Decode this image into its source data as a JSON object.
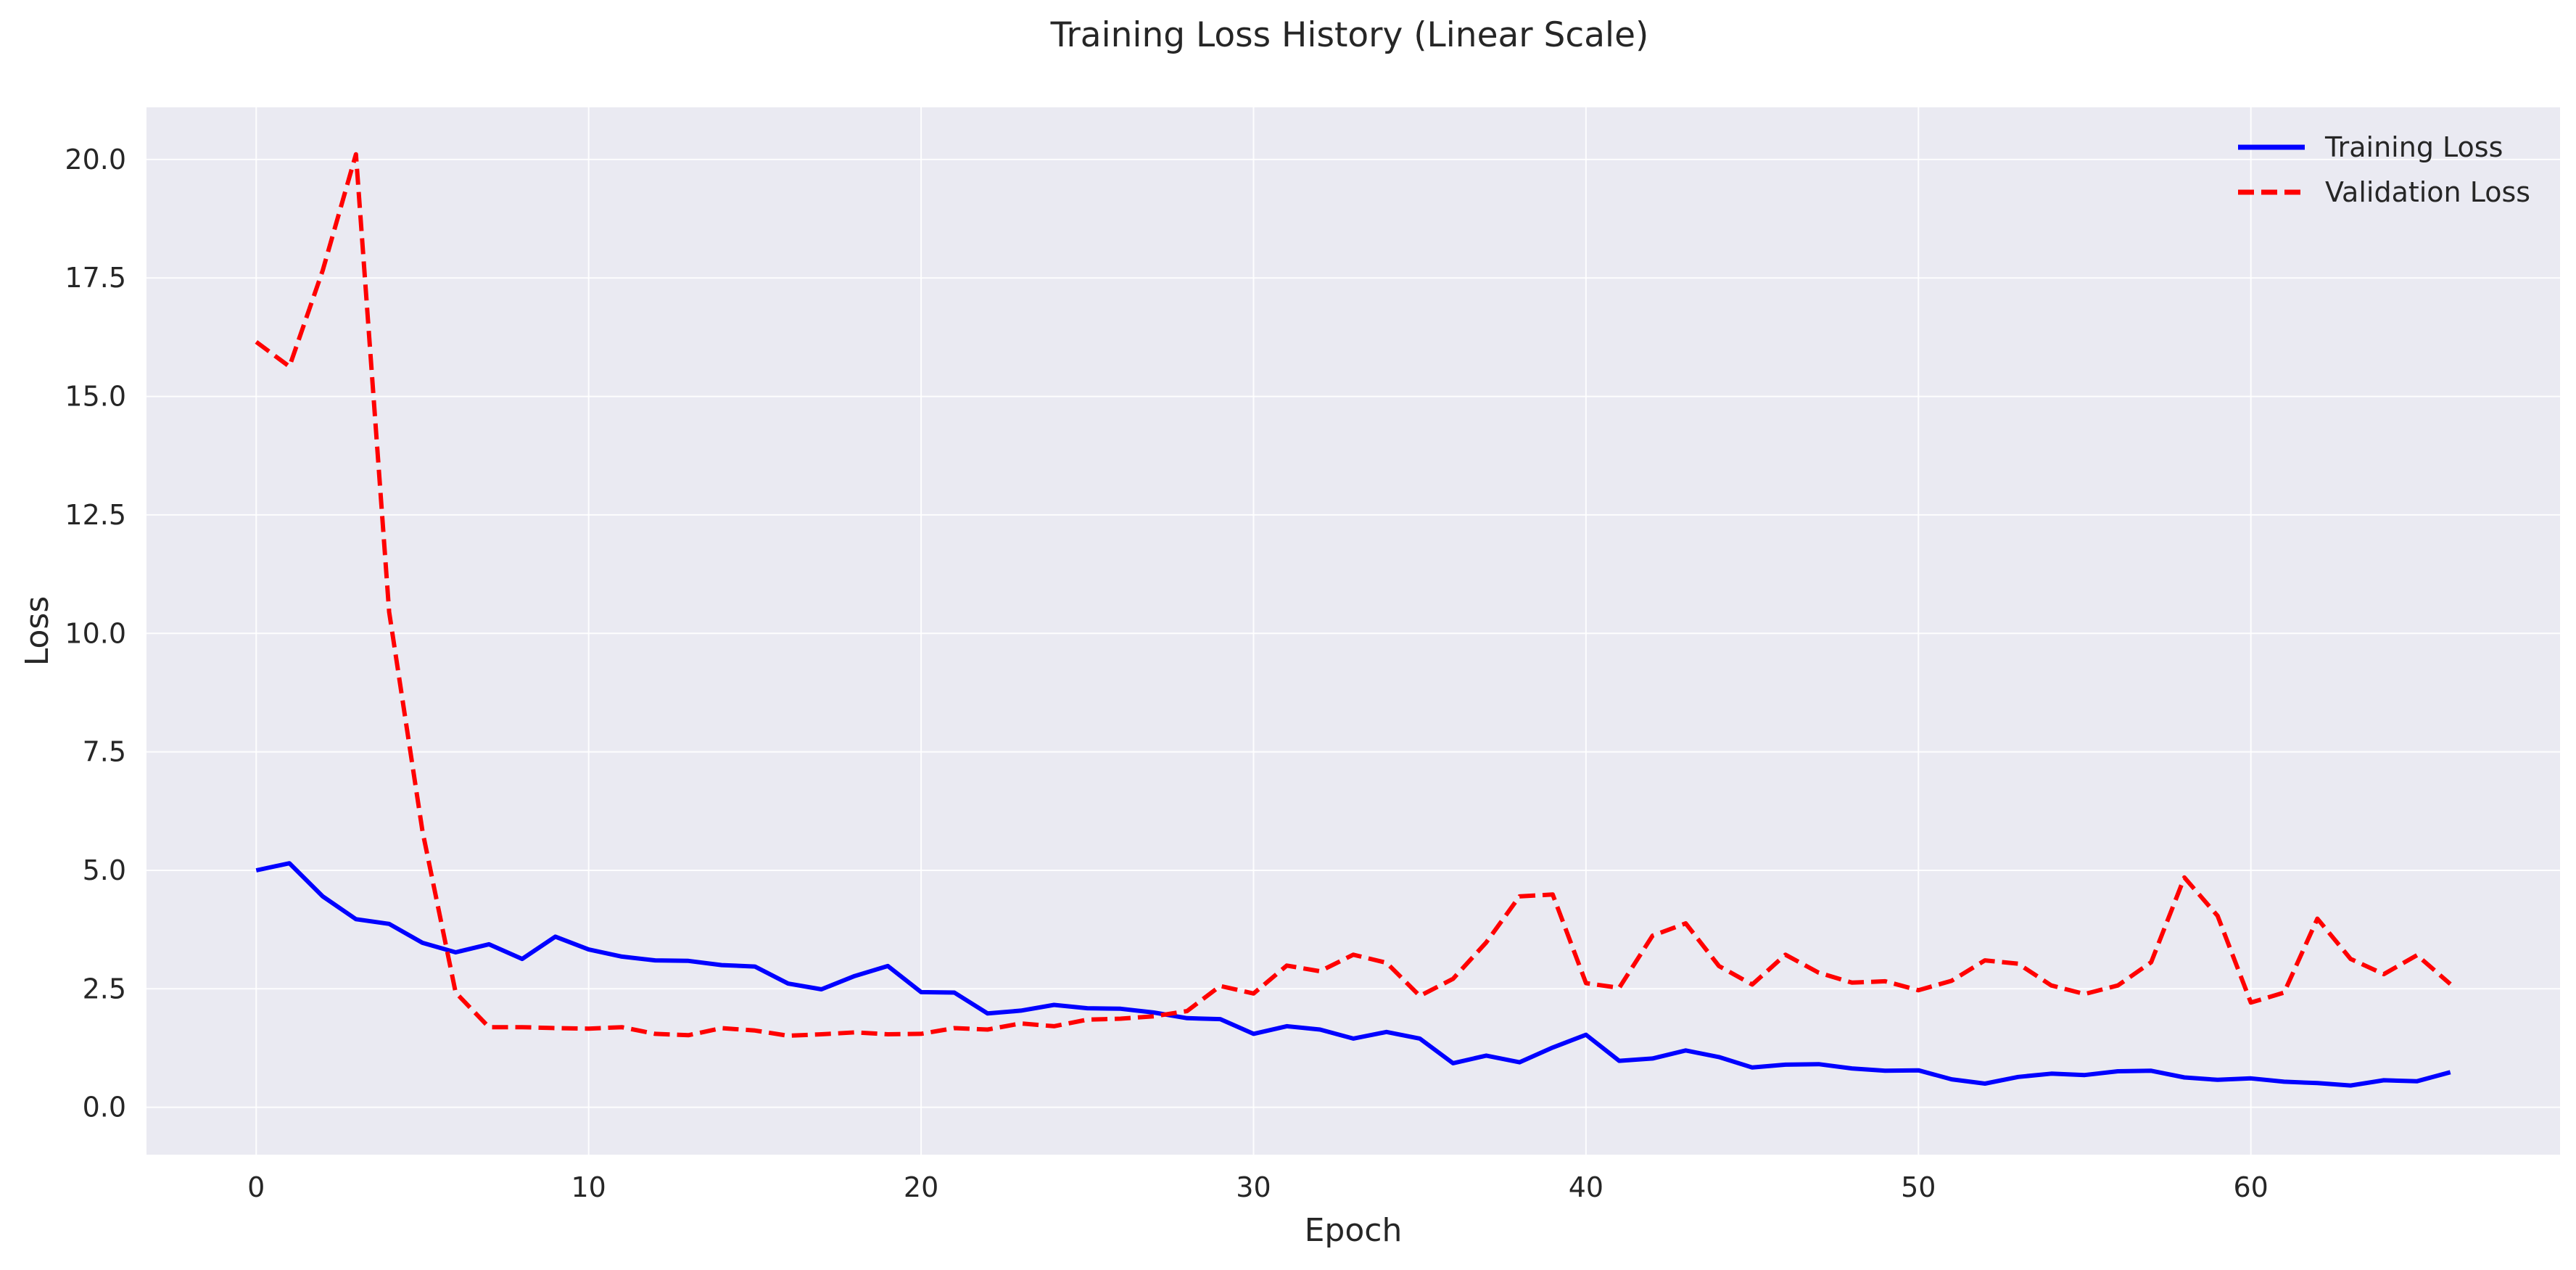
{
  "chart_data": {
    "type": "line",
    "title": "Training Loss History (Linear Scale)",
    "xlabel": "Epoch",
    "ylabel": "Loss",
    "xlim": [
      -3.3,
      69.3
    ],
    "ylim": [
      -1.0,
      21.1
    ],
    "xticks": [
      0,
      10,
      20,
      30,
      40,
      50,
      60
    ],
    "yticks": [
      0.0,
      2.5,
      5.0,
      7.5,
      10.0,
      12.5,
      15.0,
      17.5,
      20.0
    ],
    "xtick_labels": [
      "0",
      "10",
      "20",
      "30",
      "40",
      "50",
      "60"
    ],
    "ytick_labels": [
      "0.0",
      "2.5",
      "5.0",
      "7.5",
      "10.0",
      "12.5",
      "15.0",
      "17.5",
      "20.0"
    ],
    "grid": true,
    "legend_position": "top-right",
    "series": [
      {
        "name": "Training Loss",
        "color": "#0000ff",
        "style": "solid",
        "values": [
          5.0,
          5.15,
          4.45,
          3.97,
          3.87,
          3.47,
          3.27,
          3.44,
          3.13,
          3.6,
          3.33,
          3.18,
          3.1,
          3.09,
          3.0,
          2.97,
          2.61,
          2.49,
          2.77,
          2.98,
          2.43,
          2.42,
          1.98,
          2.04,
          2.16,
          2.09,
          2.08,
          2.0,
          1.88,
          1.86,
          1.55,
          1.71,
          1.64,
          1.45,
          1.59,
          1.45,
          0.93,
          1.09,
          0.95,
          1.26,
          1.53,
          0.98,
          1.03,
          1.2,
          1.06,
          0.84,
          0.9,
          0.91,
          0.82,
          0.77,
          0.78,
          0.59,
          0.5,
          0.64,
          0.71,
          0.68,
          0.76,
          0.77,
          0.63,
          0.58,
          0.61,
          0.54,
          0.51,
          0.46,
          0.57,
          0.55,
          0.74
        ]
      },
      {
        "name": "Validation Loss",
        "color": "#ff0000",
        "style": "dashed",
        "values": [
          16.15,
          15.63,
          17.66,
          20.11,
          10.45,
          5.83,
          2.42,
          1.69,
          1.69,
          1.67,
          1.66,
          1.69,
          1.55,
          1.52,
          1.67,
          1.62,
          1.51,
          1.54,
          1.58,
          1.54,
          1.55,
          1.67,
          1.64,
          1.77,
          1.71,
          1.85,
          1.87,
          1.92,
          2.03,
          2.56,
          2.4,
          2.99,
          2.87,
          3.22,
          3.05,
          2.35,
          2.71,
          3.48,
          4.45,
          4.49,
          2.62,
          2.52,
          3.62,
          3.88,
          2.98,
          2.59,
          3.22,
          2.84,
          2.63,
          2.66,
          2.47,
          2.67,
          3.1,
          3.03,
          2.57,
          2.39,
          2.57,
          3.06,
          4.85,
          4.04,
          2.21,
          2.42,
          3.98,
          3.13,
          2.81,
          3.21,
          2.6
        ]
      }
    ]
  }
}
